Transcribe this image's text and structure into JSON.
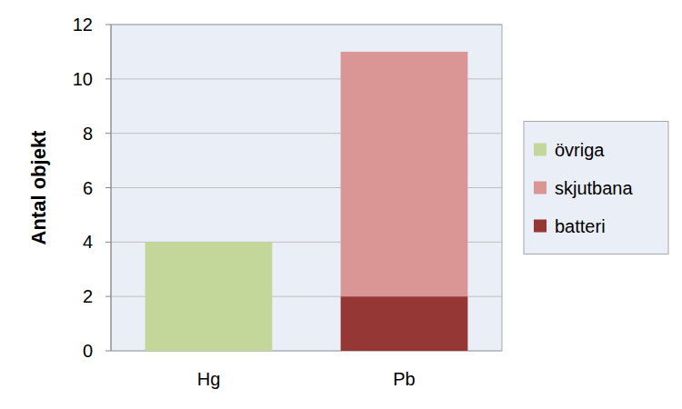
{
  "chart_data": {
    "type": "bar",
    "stacked": true,
    "y_label": "Antal objekt",
    "categories": [
      "Hg",
      "Pb"
    ],
    "series": [
      {
        "name": "batteri",
        "color": "#953735",
        "values": [
          0,
          2
        ]
      },
      {
        "name": "skjutbana",
        "color": "#d99694",
        "values": [
          0,
          9
        ]
      },
      {
        "name": "övriga",
        "color": "#c4d79b",
        "values": [
          4,
          0
        ]
      }
    ],
    "ylim": [
      0,
      12
    ],
    "yticks": [
      0,
      2,
      4,
      6,
      8,
      10,
      12
    ],
    "grid": true,
    "legend": "right"
  }
}
